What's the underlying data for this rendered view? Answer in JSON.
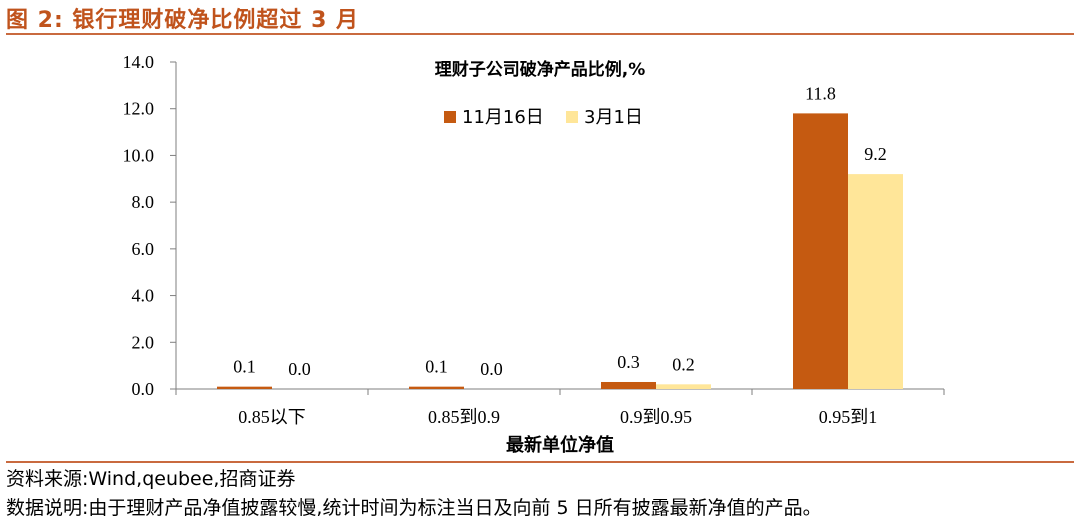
{
  "figure": {
    "title": "图 2: 银行理财破净比例超过 3 月",
    "source": "资料来源:Wind,qeubee,招商证券",
    "note": "数据说明:由于理财产品净值披露较慢,统计时间为标注当日及向前 5 日所有披露最新净值的产品。"
  },
  "chart_data": {
    "type": "bar",
    "title": "理财子公司破净产品比例,%",
    "xlabel": "最新单位净值",
    "ylabel": "",
    "categories": [
      "0.85以下",
      "0.85到0.9",
      "0.9到0.95",
      "0.95到1"
    ],
    "series": [
      {
        "name": "11月16日",
        "color": "#c55a11",
        "values": [
          0.1,
          0.1,
          0.3,
          11.8
        ],
        "labels": [
          "0.1",
          "0.1",
          "0.3",
          "11.8"
        ]
      },
      {
        "name": "3月1日",
        "color": "#ffe699",
        "values": [
          0.0,
          0.0,
          0.2,
          9.2
        ],
        "labels": [
          "0.0",
          "0.0",
          "0.2",
          "9.2"
        ]
      }
    ],
    "ylim": [
      0,
      14
    ],
    "yticks": [
      "0.0",
      "2.0",
      "4.0",
      "6.0",
      "8.0",
      "10.0",
      "12.0",
      "14.0"
    ],
    "grid": false,
    "legend_position": "top-center"
  }
}
